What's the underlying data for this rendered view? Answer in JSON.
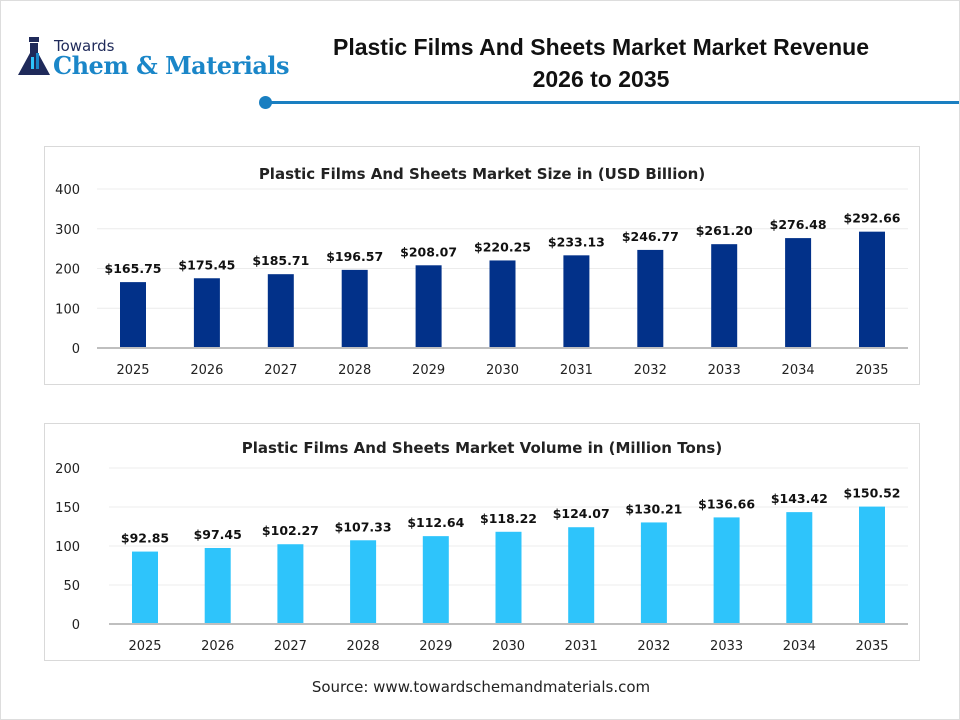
{
  "header": {
    "logo_line1": "Towards",
    "logo_line2": "Chem & Materials",
    "title_line1": "Plastic Films And Sheets Market Market Revenue",
    "title_line2": "2026 to 2035",
    "accent": "#1a7fc1"
  },
  "chart_data": [
    {
      "type": "bar",
      "title": "Plastic Films And Sheets Market Size in (USD Billion)",
      "categories": [
        "2025",
        "2026",
        "2027",
        "2028",
        "2029",
        "2030",
        "2031",
        "2032",
        "2033",
        "2034",
        "2035"
      ],
      "values": [
        165.75,
        175.45,
        185.71,
        196.57,
        208.07,
        220.25,
        233.13,
        246.77,
        261.2,
        276.48,
        292.66
      ],
      "data_labels": [
        "$165.75",
        "$175.45",
        "$185.71",
        "$196.57",
        "$208.07",
        "$220.25",
        "$233.13",
        "$246.77",
        "$261.20",
        "$276.48",
        "$292.66"
      ],
      "ylim": [
        0,
        400
      ],
      "yticks": [
        "0",
        "100",
        "200",
        "300",
        "400"
      ],
      "grid": true,
      "color": "#023189"
    },
    {
      "type": "bar",
      "title": "Plastic Films And Sheets Market Volume in (Million Tons)",
      "categories": [
        "2025",
        "2026",
        "2027",
        "2028",
        "2029",
        "2030",
        "2031",
        "2032",
        "2033",
        "2034",
        "2035"
      ],
      "values": [
        92.85,
        97.45,
        102.27,
        107.33,
        112.64,
        118.22,
        124.07,
        130.21,
        136.66,
        143.42,
        150.52
      ],
      "data_labels": [
        "$92.85",
        "$97.45",
        "$102.27",
        "$107.33",
        "$112.64",
        "$118.22",
        "$124.07",
        "$130.21",
        "$136.66",
        "$143.42",
        "$150.52"
      ],
      "ylim": [
        0,
        200
      ],
      "yticks": [
        "0",
        "50",
        "100",
        "150",
        "200"
      ],
      "grid": true,
      "color": "#2ec4fb"
    }
  ],
  "source": "Source: www.towardschemandmaterials.com"
}
